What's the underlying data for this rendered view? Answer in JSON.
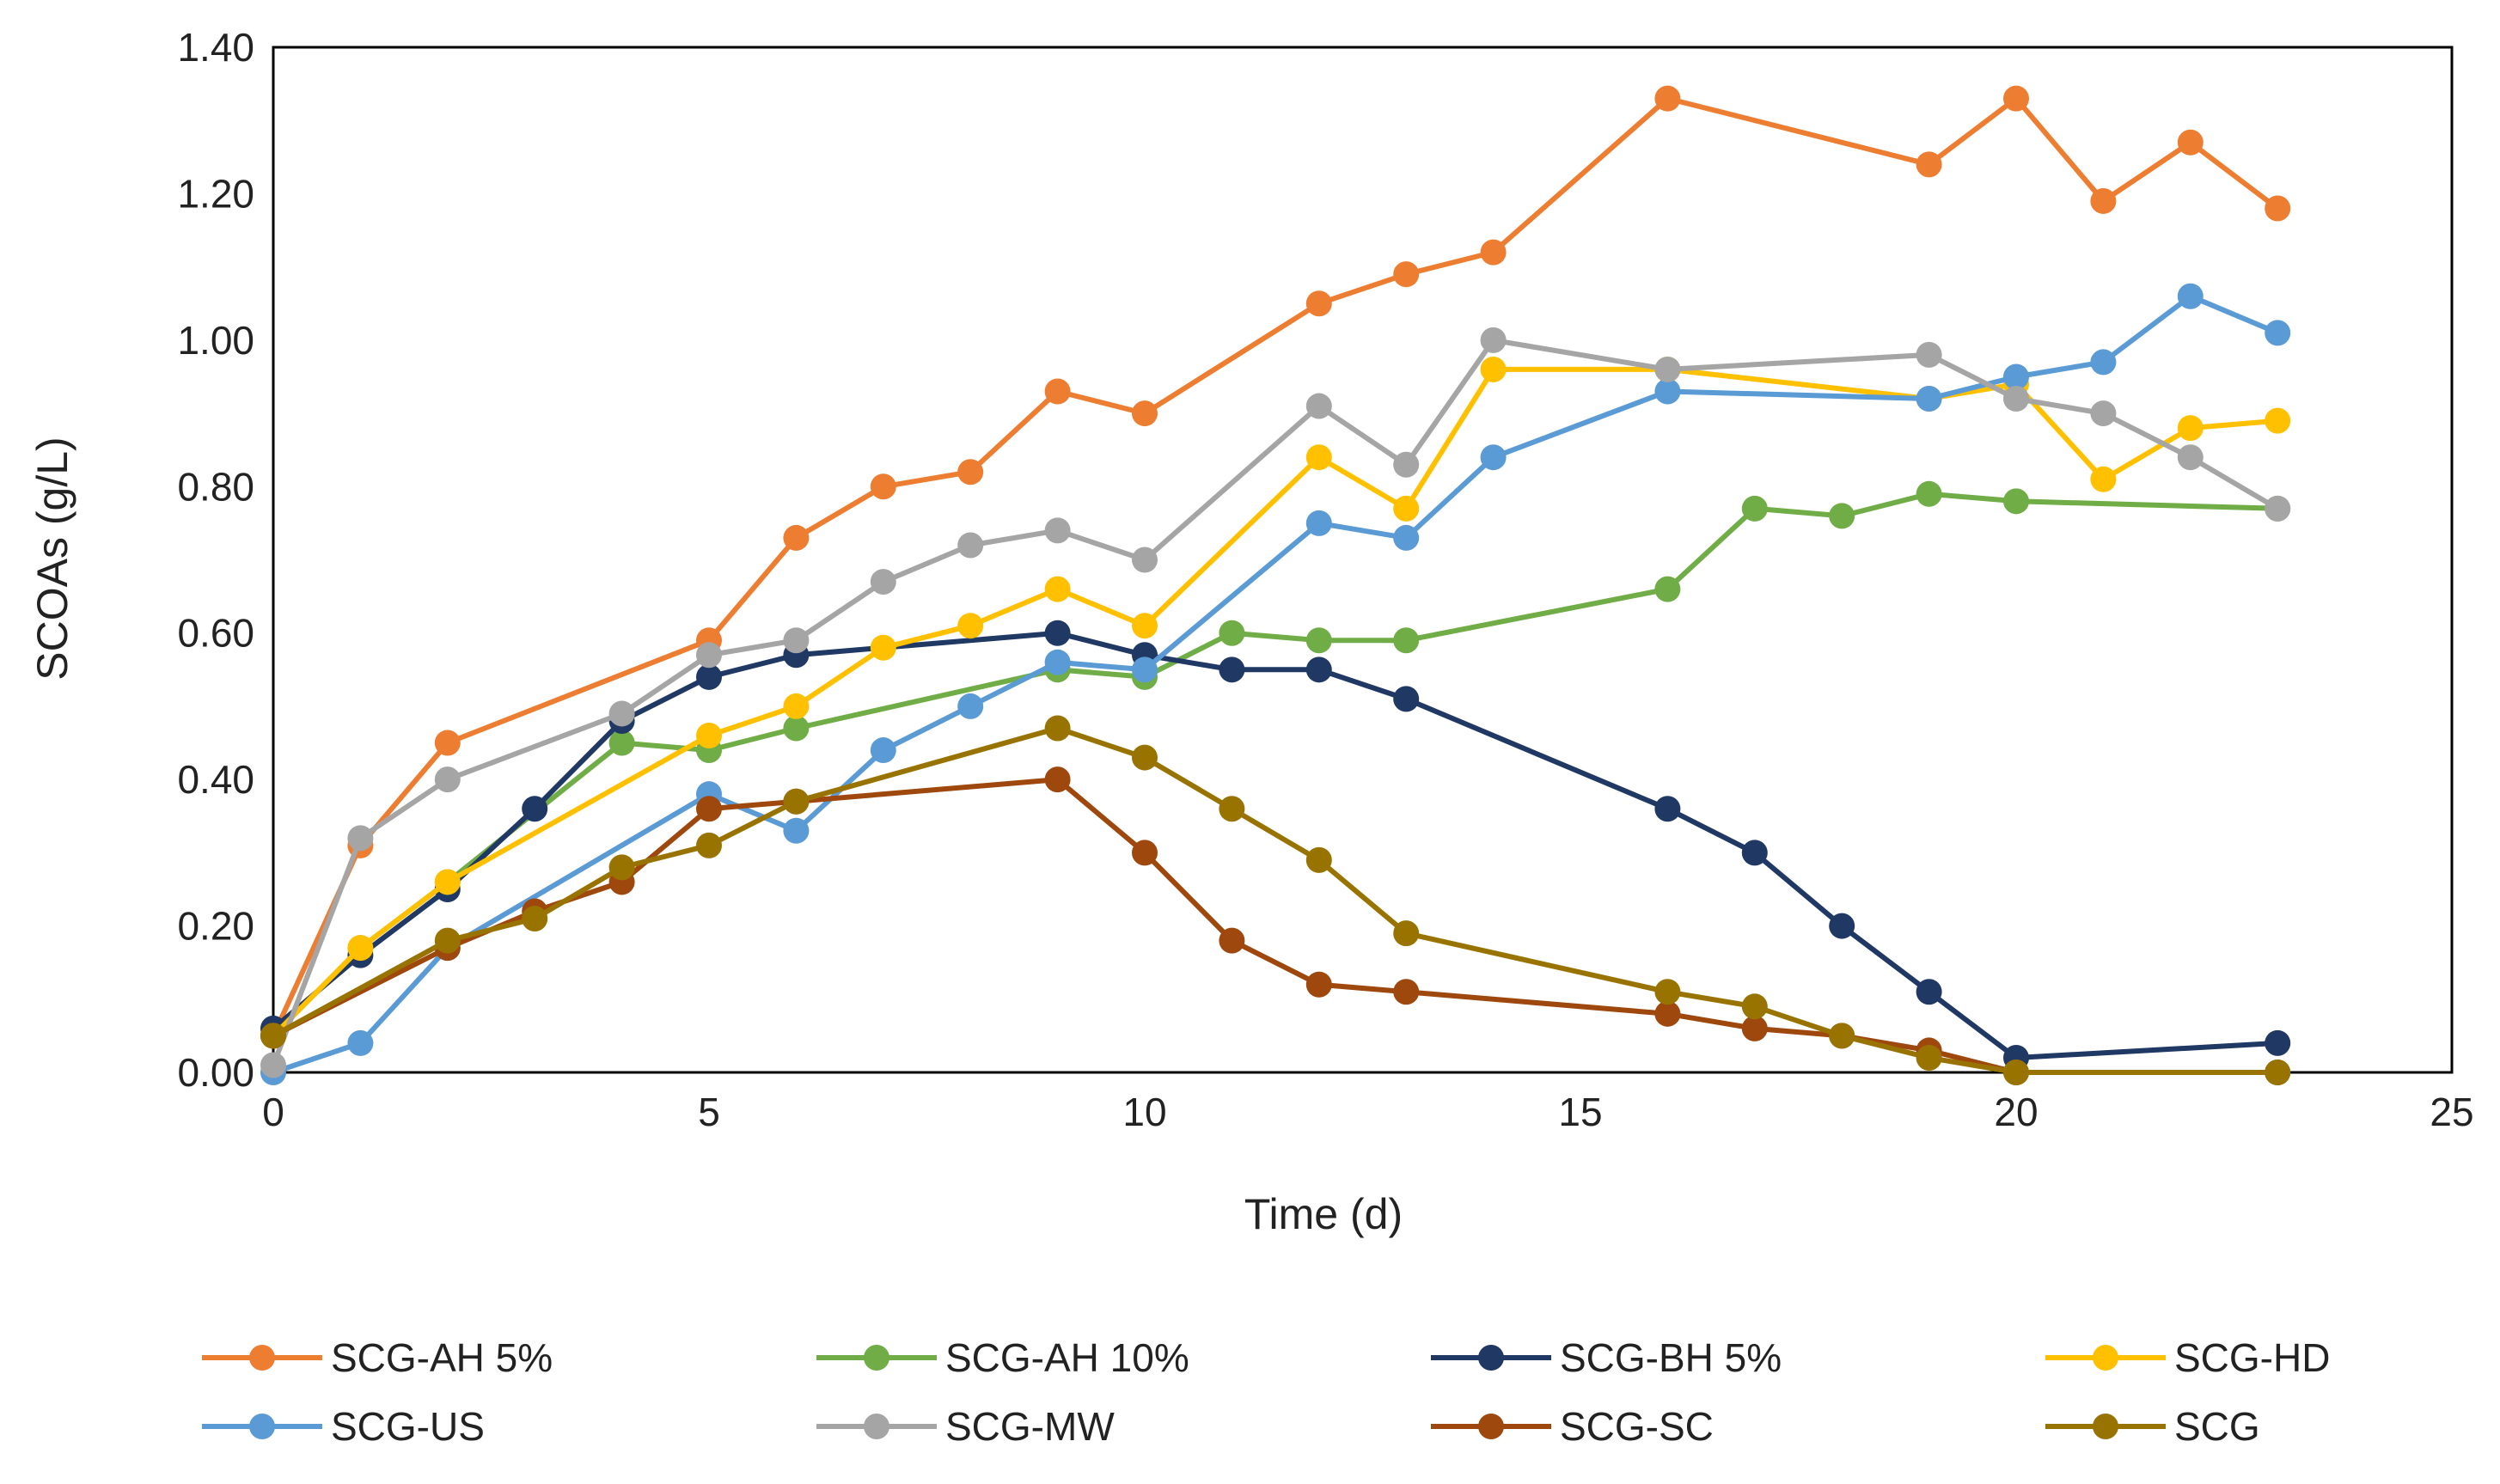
{
  "chart_data": {
    "type": "line",
    "title": "",
    "xlabel": "Time (d)",
    "ylabel": "SCOAs (g/L)",
    "xlim": [
      0,
      25
    ],
    "ylim": [
      0,
      1.4
    ],
    "xticks": [
      0,
      5,
      10,
      15,
      20,
      25
    ],
    "yticks": [
      0,
      0.2,
      0.4,
      0.6,
      0.8,
      1.0,
      1.2,
      1.4
    ],
    "xtick_labels": [
      "0",
      "5",
      "10",
      "15",
      "20",
      "25"
    ],
    "ytick_labels": [
      "0.00",
      "0.20",
      "0.40",
      "0.60",
      "0.80",
      "1.00",
      "1.20",
      "1.40"
    ],
    "grid": false,
    "legend_position": "bottom",
    "series": [
      {
        "name": "SCG-AH 5%",
        "color": "#ED7D31",
        "x": [
          0,
          1,
          2,
          5,
          6,
          7,
          8,
          9,
          10,
          12,
          13,
          14,
          16,
          19,
          20,
          21,
          22,
          23
        ],
        "y": [
          0.05,
          0.31,
          0.45,
          0.59,
          0.73,
          0.8,
          0.82,
          0.93,
          0.9,
          1.05,
          1.09,
          1.12,
          1.33,
          1.24,
          1.33,
          1.19,
          1.27,
          1.18
        ]
      },
      {
        "name": "SCG-AH 10%",
        "color": "#70AD47",
        "x": [
          0,
          1,
          2,
          4,
          5,
          6,
          9,
          10,
          11,
          12,
          13,
          16,
          17,
          18,
          19,
          20,
          23
        ],
        "y": [
          0.05,
          0.17,
          0.26,
          0.45,
          0.44,
          0.47,
          0.55,
          0.54,
          0.6,
          0.59,
          0.59,
          0.66,
          0.77,
          0.76,
          0.79,
          0.78,
          0.77
        ]
      },
      {
        "name": "SCG-BH 5%",
        "color": "#1F3864",
        "x": [
          0,
          1,
          2,
          3,
          4,
          5,
          6,
          9,
          10,
          11,
          12,
          13,
          16,
          17,
          18,
          19,
          20,
          23
        ],
        "y": [
          0.06,
          0.16,
          0.25,
          0.36,
          0.48,
          0.54,
          0.57,
          0.6,
          0.57,
          0.55,
          0.55,
          0.51,
          0.36,
          0.3,
          0.2,
          0.11,
          0.02,
          0.04
        ]
      },
      {
        "name": "SCG-HD",
        "color": "#FFC000",
        "x": [
          0,
          1,
          2,
          5,
          6,
          7,
          8,
          9,
          10,
          12,
          13,
          14,
          16,
          19,
          20,
          21,
          22,
          23
        ],
        "y": [
          0.05,
          0.17,
          0.26,
          0.46,
          0.5,
          0.58,
          0.61,
          0.66,
          0.61,
          0.84,
          0.77,
          0.96,
          0.96,
          0.92,
          0.94,
          0.81,
          0.88,
          0.89
        ]
      },
      {
        "name": "SCG-US",
        "color": "#5B9BD5",
        "x": [
          0,
          1,
          2,
          5,
          6,
          7,
          8,
          9,
          10,
          12,
          13,
          14,
          16,
          19,
          20,
          21,
          22,
          23
        ],
        "y": [
          0.0,
          0.04,
          0.17,
          0.38,
          0.33,
          0.44,
          0.5,
          0.56,
          0.55,
          0.75,
          0.73,
          0.84,
          0.93,
          0.92,
          0.95,
          0.97,
          1.06,
          1.01
        ]
      },
      {
        "name": "SCG-MW",
        "color": "#A5A5A5",
        "x": [
          0,
          1,
          2,
          4,
          5,
          6,
          7,
          8,
          9,
          10,
          12,
          13,
          14,
          16,
          19,
          20,
          21,
          22,
          23
        ],
        "y": [
          0.01,
          0.32,
          0.4,
          0.49,
          0.57,
          0.59,
          0.67,
          0.72,
          0.74,
          0.7,
          0.91,
          0.83,
          1.0,
          0.96,
          0.98,
          0.92,
          0.9,
          0.84,
          0.77
        ]
      },
      {
        "name": "SCG-SC",
        "color": "#9E480E",
        "x": [
          0,
          2,
          3,
          4,
          5,
          6,
          9,
          10,
          11,
          12,
          13,
          16,
          17,
          18,
          19,
          20,
          23
        ],
        "y": [
          0.05,
          0.17,
          0.22,
          0.26,
          0.36,
          0.37,
          0.4,
          0.3,
          0.18,
          0.12,
          0.11,
          0.08,
          0.06,
          0.05,
          0.03,
          0.0,
          0.0
        ]
      },
      {
        "name": "SCG",
        "color": "#997300",
        "x": [
          0,
          2,
          3,
          4,
          5,
          6,
          9,
          10,
          11,
          12,
          13,
          16,
          17,
          18,
          19,
          20,
          23
        ],
        "y": [
          0.05,
          0.18,
          0.21,
          0.28,
          0.31,
          0.37,
          0.47,
          0.43,
          0.36,
          0.29,
          0.19,
          0.11,
          0.09,
          0.05,
          0.02,
          0.0,
          0.0
        ]
      }
    ]
  }
}
